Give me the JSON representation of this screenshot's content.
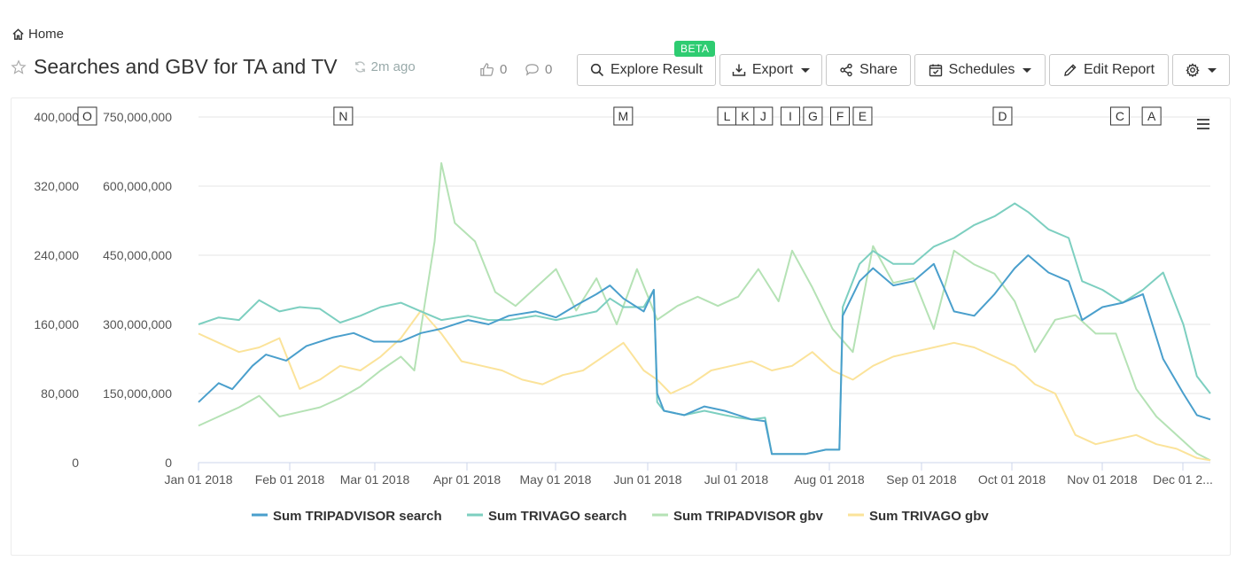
{
  "breadcrumb": {
    "home_label": "Home",
    "icon": "home-icon"
  },
  "header": {
    "title": "Searches and GBV for TA and TV",
    "refresh_text": "2m ago",
    "likes": "0",
    "comments": "0"
  },
  "toolbar": {
    "explore_label": "Explore Result",
    "beta_label": "BETA",
    "export_label": "Export",
    "share_label": "Share",
    "schedules_label": "Schedules",
    "edit_label": "Edit Report"
  },
  "colors": {
    "tripadvisor_search": "#4a9fcc",
    "trivago_search": "#7dcfc0",
    "tripadvisor_gbv": "#b5e2b5",
    "trivago_gbv": "#fbe39a"
  },
  "chart_data": {
    "type": "line",
    "left_axis_ticks": [
      "400,000",
      "320,000",
      "240,000",
      "160,000",
      "80,000",
      "0"
    ],
    "right_axis_ticks": [
      "750,000,000",
      "600,000,000",
      "450,000,000",
      "300,000,000",
      "150,000,000",
      "0"
    ],
    "left_ylim": [
      0,
      400000
    ],
    "right_ylim": [
      0,
      750000000
    ],
    "x_tick_labels": [
      "Jan 01 2018",
      "Feb 01 2018",
      "Mar 01 2018",
      "Apr 01 2018",
      "May 01 2018",
      "Jun 01 2018",
      "Jul 01 2018",
      "Aug 01 2018",
      "Sep 01 2018",
      "Oct 01 2018",
      "Nov 01 2018",
      "Dec 01 2..."
    ],
    "x_tick_months": [
      0,
      1,
      2,
      3,
      4,
      5,
      6,
      7,
      8,
      9,
      10,
      11
    ],
    "annotations": [
      {
        "label": "O",
        "month": -0.4
      },
      {
        "label": "N",
        "month": 1.5
      },
      {
        "label": "M",
        "month": 4.6
      },
      {
        "label": "L",
        "month": 5.75
      },
      {
        "label": "K",
        "month": 5.95
      },
      {
        "label": "J",
        "month": 6.15
      },
      {
        "label": "I",
        "month": 6.45
      },
      {
        "label": "G",
        "month": 6.7
      },
      {
        "label": "F",
        "month": 7.0
      },
      {
        "label": "E",
        "month": 7.25
      },
      {
        "label": "D",
        "month": 8.8
      },
      {
        "label": "C",
        "month": 10.1
      },
      {
        "label": "A",
        "month": 10.45
      }
    ],
    "grid": true,
    "legend_position": "bottom",
    "series": [
      {
        "name": "Sum TRIPADVISOR search",
        "axis": "left",
        "points": [
          [
            0,
            70000
          ],
          [
            0.3,
            92000
          ],
          [
            0.5,
            85000
          ],
          [
            0.8,
            112000
          ],
          [
            1.0,
            125000
          ],
          [
            1.3,
            118000
          ],
          [
            1.6,
            135000
          ],
          [
            2.0,
            145000
          ],
          [
            2.3,
            150000
          ],
          [
            2.6,
            140000
          ],
          [
            3.0,
            140000
          ],
          [
            3.3,
            150000
          ],
          [
            3.6,
            155000
          ],
          [
            4.0,
            165000
          ],
          [
            4.3,
            160000
          ],
          [
            4.6,
            170000
          ],
          [
            5.0,
            175000
          ],
          [
            5.3,
            168000
          ],
          [
            5.6,
            182000
          ],
          [
            5.9,
            195000
          ],
          [
            6.1,
            205000
          ],
          [
            6.3,
            190000
          ],
          [
            6.6,
            175000
          ],
          [
            6.75,
            200000
          ],
          [
            6.8,
            80000
          ],
          [
            6.9,
            60000
          ],
          [
            7.2,
            55000
          ],
          [
            7.5,
            65000
          ],
          [
            7.8,
            60000
          ],
          [
            8.0,
            55000
          ],
          [
            8.2,
            50000
          ],
          [
            8.4,
            48000
          ],
          [
            8.5,
            10000
          ],
          [
            9.0,
            10000
          ],
          [
            9.3,
            15000
          ],
          [
            9.5,
            15000
          ],
          [
            9.55,
            170000
          ],
          [
            9.8,
            210000
          ],
          [
            10.0,
            225000
          ],
          [
            10.3,
            205000
          ],
          [
            10.6,
            210000
          ],
          [
            10.9,
            230000
          ],
          [
            11.2,
            175000
          ],
          [
            11.5,
            170000
          ],
          [
            11.8,
            195000
          ],
          [
            12.1,
            225000
          ],
          [
            12.3,
            240000
          ],
          [
            12.6,
            220000
          ],
          [
            12.9,
            210000
          ],
          [
            13.1,
            165000
          ],
          [
            13.4,
            180000
          ],
          [
            13.7,
            185000
          ],
          [
            14.0,
            195000
          ],
          [
            14.3,
            120000
          ],
          [
            14.6,
            80000
          ],
          [
            14.8,
            55000
          ],
          [
            15.0,
            50000
          ]
        ]
      },
      {
        "name": "Sum TRIVAGO search",
        "axis": "left",
        "points": [
          [
            0,
            160000
          ],
          [
            0.3,
            168000
          ],
          [
            0.6,
            165000
          ],
          [
            0.9,
            188000
          ],
          [
            1.2,
            175000
          ],
          [
            1.5,
            180000
          ],
          [
            1.8,
            178000
          ],
          [
            2.1,
            162000
          ],
          [
            2.4,
            170000
          ],
          [
            2.7,
            180000
          ],
          [
            3.0,
            185000
          ],
          [
            3.3,
            175000
          ],
          [
            3.6,
            165000
          ],
          [
            4.0,
            170000
          ],
          [
            4.3,
            165000
          ],
          [
            4.6,
            165000
          ],
          [
            5.0,
            170000
          ],
          [
            5.3,
            165000
          ],
          [
            5.6,
            170000
          ],
          [
            5.9,
            175000
          ],
          [
            6.1,
            190000
          ],
          [
            6.3,
            180000
          ],
          [
            6.6,
            180000
          ],
          [
            6.75,
            200000
          ],
          [
            6.8,
            70000
          ],
          [
            6.9,
            60000
          ],
          [
            7.2,
            55000
          ],
          [
            7.5,
            60000
          ],
          [
            7.8,
            55000
          ],
          [
            8.0,
            52000
          ],
          [
            8.2,
            50000
          ],
          [
            8.4,
            52000
          ],
          [
            8.5,
            10000
          ],
          [
            9.0,
            10000
          ],
          [
            9.3,
            15000
          ],
          [
            9.5,
            15000
          ],
          [
            9.55,
            180000
          ],
          [
            9.8,
            230000
          ],
          [
            10.0,
            245000
          ],
          [
            10.3,
            230000
          ],
          [
            10.6,
            230000
          ],
          [
            10.9,
            250000
          ],
          [
            11.2,
            260000
          ],
          [
            11.5,
            275000
          ],
          [
            11.8,
            285000
          ],
          [
            12.1,
            300000
          ],
          [
            12.3,
            290000
          ],
          [
            12.6,
            270000
          ],
          [
            12.9,
            260000
          ],
          [
            13.1,
            210000
          ],
          [
            13.4,
            200000
          ],
          [
            13.7,
            185000
          ],
          [
            14.0,
            200000
          ],
          [
            14.3,
            220000
          ],
          [
            14.6,
            160000
          ],
          [
            14.8,
            100000
          ],
          [
            15.0,
            80000
          ]
        ]
      },
      {
        "name": "Sum TRIPADVISOR gbv",
        "axis": "right",
        "points": [
          [
            0,
            80000000
          ],
          [
            0.3,
            100000000
          ],
          [
            0.6,
            120000000
          ],
          [
            0.9,
            145000000
          ],
          [
            1.2,
            100000000
          ],
          [
            1.5,
            110000000
          ],
          [
            1.8,
            120000000
          ],
          [
            2.1,
            140000000
          ],
          [
            2.4,
            165000000
          ],
          [
            2.7,
            200000000
          ],
          [
            3.0,
            230000000
          ],
          [
            3.2,
            200000000
          ],
          [
            3.5,
            480000000
          ],
          [
            3.6,
            650000000
          ],
          [
            3.8,
            520000000
          ],
          [
            4.1,
            480000000
          ],
          [
            4.4,
            370000000
          ],
          [
            4.7,
            340000000
          ],
          [
            5.0,
            380000000
          ],
          [
            5.3,
            420000000
          ],
          [
            5.6,
            330000000
          ],
          [
            5.9,
            400000000
          ],
          [
            6.2,
            300000000
          ],
          [
            6.5,
            420000000
          ],
          [
            6.8,
            310000000
          ],
          [
            7.1,
            340000000
          ],
          [
            7.4,
            360000000
          ],
          [
            7.7,
            340000000
          ],
          [
            8.0,
            360000000
          ],
          [
            8.3,
            420000000
          ],
          [
            8.6,
            350000000
          ],
          [
            8.8,
            460000000
          ],
          [
            9.1,
            380000000
          ],
          [
            9.4,
            290000000
          ],
          [
            9.7,
            240000000
          ],
          [
            10.0,
            470000000
          ],
          [
            10.3,
            390000000
          ],
          [
            10.6,
            400000000
          ],
          [
            10.9,
            290000000
          ],
          [
            11.2,
            460000000
          ],
          [
            11.5,
            430000000
          ],
          [
            11.8,
            410000000
          ],
          [
            12.1,
            350000000
          ],
          [
            12.4,
            240000000
          ],
          [
            12.7,
            310000000
          ],
          [
            13.0,
            320000000
          ],
          [
            13.3,
            280000000
          ],
          [
            13.6,
            280000000
          ],
          [
            13.9,
            160000000
          ],
          [
            14.2,
            100000000
          ],
          [
            14.5,
            60000000
          ],
          [
            14.8,
            20000000
          ],
          [
            15.0,
            5000000
          ]
        ]
      },
      {
        "name": "Sum TRIVAGO gbv",
        "axis": "right",
        "points": [
          [
            0,
            280000000
          ],
          [
            0.3,
            260000000
          ],
          [
            0.6,
            240000000
          ],
          [
            0.9,
            250000000
          ],
          [
            1.2,
            270000000
          ],
          [
            1.5,
            160000000
          ],
          [
            1.8,
            180000000
          ],
          [
            2.1,
            210000000
          ],
          [
            2.4,
            200000000
          ],
          [
            2.7,
            230000000
          ],
          [
            3.0,
            270000000
          ],
          [
            3.3,
            330000000
          ],
          [
            3.6,
            280000000
          ],
          [
            3.9,
            220000000
          ],
          [
            4.2,
            210000000
          ],
          [
            4.5,
            200000000
          ],
          [
            4.8,
            180000000
          ],
          [
            5.1,
            170000000
          ],
          [
            5.4,
            190000000
          ],
          [
            5.7,
            200000000
          ],
          [
            6.0,
            230000000
          ],
          [
            6.3,
            260000000
          ],
          [
            6.6,
            200000000
          ],
          [
            6.8,
            180000000
          ],
          [
            7.0,
            150000000
          ],
          [
            7.3,
            170000000
          ],
          [
            7.6,
            200000000
          ],
          [
            7.9,
            210000000
          ],
          [
            8.2,
            220000000
          ],
          [
            8.5,
            200000000
          ],
          [
            8.8,
            210000000
          ],
          [
            9.1,
            240000000
          ],
          [
            9.4,
            200000000
          ],
          [
            9.7,
            180000000
          ],
          [
            10.0,
            210000000
          ],
          [
            10.3,
            230000000
          ],
          [
            10.6,
            240000000
          ],
          [
            10.9,
            250000000
          ],
          [
            11.2,
            260000000
          ],
          [
            11.5,
            250000000
          ],
          [
            11.8,
            230000000
          ],
          [
            12.1,
            210000000
          ],
          [
            12.4,
            170000000
          ],
          [
            12.7,
            150000000
          ],
          [
            13.0,
            60000000
          ],
          [
            13.3,
            40000000
          ],
          [
            13.6,
            50000000
          ],
          [
            13.9,
            60000000
          ],
          [
            14.2,
            40000000
          ],
          [
            14.5,
            30000000
          ],
          [
            14.8,
            10000000
          ],
          [
            15.0,
            5000000
          ]
        ]
      }
    ]
  }
}
